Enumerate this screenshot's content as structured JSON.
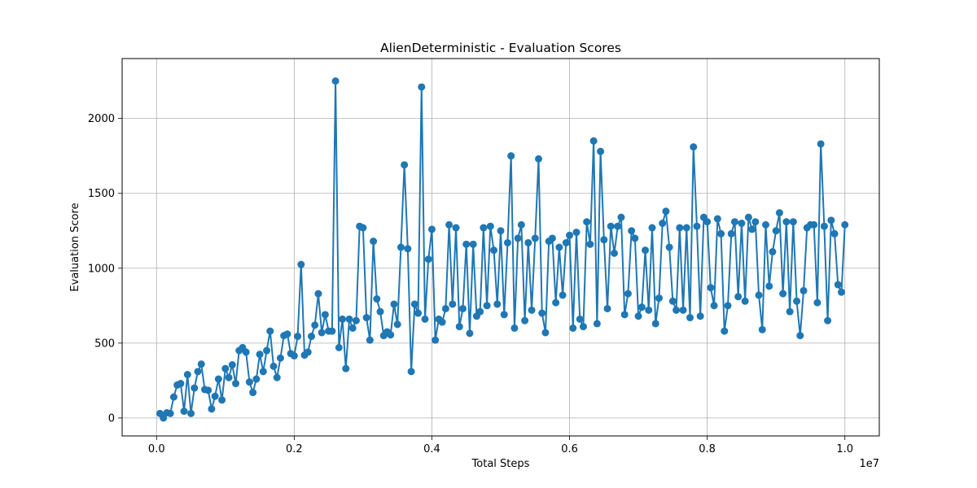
{
  "chart_data": {
    "type": "line",
    "title": "AlienDeterministic - Evaluation Scores",
    "xlabel": "Total Steps",
    "ylabel": "Evaluation Score",
    "x_scale_label": "1e7",
    "x_unit_factor": 10000000,
    "xlim": [
      -0.05,
      1.05
    ],
    "ylim": [
      -120,
      2400
    ],
    "xticks": [
      0.0,
      0.2,
      0.4,
      0.6,
      0.8,
      1.0
    ],
    "xtick_labels": [
      "0.0",
      "0.2",
      "0.4",
      "0.6",
      "0.8",
      "1.0"
    ],
    "yticks": [
      0,
      500,
      1000,
      1500,
      2000
    ],
    "ytick_labels": [
      "0",
      "500",
      "1000",
      "1500",
      "2000"
    ],
    "grid": true,
    "line_color": "#1f77b4",
    "marker": "circle",
    "series": [
      {
        "x": [
          0.005,
          0.01,
          0.015,
          0.02,
          0.025,
          0.03,
          0.035,
          0.04,
          0.045,
          0.05,
          0.055,
          0.06,
          0.065,
          0.07,
          0.075,
          0.08,
          0.085,
          0.09,
          0.095,
          0.1,
          0.105,
          0.11,
          0.115,
          0.12,
          0.125,
          0.13,
          0.135,
          0.14,
          0.145,
          0.15,
          0.155,
          0.16,
          0.165,
          0.17,
          0.175,
          0.18,
          0.185,
          0.19,
          0.195,
          0.2,
          0.205,
          0.21,
          0.215,
          0.22,
          0.225,
          0.23,
          0.235,
          0.24,
          0.245,
          0.25,
          0.255,
          0.26,
          0.265,
          0.27,
          0.275,
          0.28,
          0.285,
          0.29,
          0.295,
          0.3,
          0.305,
          0.31,
          0.315,
          0.32,
          0.325,
          0.33,
          0.335,
          0.34,
          0.345,
          0.35,
          0.355,
          0.36,
          0.365,
          0.37,
          0.375,
          0.38,
          0.385,
          0.39,
          0.395,
          0.4,
          0.405,
          0.41,
          0.415,
          0.42,
          0.425,
          0.43,
          0.435,
          0.44,
          0.445,
          0.45,
          0.455,
          0.46,
          0.465,
          0.47,
          0.475,
          0.48,
          0.485,
          0.49,
          0.495,
          0.5,
          0.505,
          0.51,
          0.515,
          0.52,
          0.525,
          0.53,
          0.535,
          0.54,
          0.545,
          0.55,
          0.555,
          0.56,
          0.565,
          0.57,
          0.575,
          0.58,
          0.585,
          0.59,
          0.595,
          0.6,
          0.605,
          0.61,
          0.615,
          0.62,
          0.625,
          0.63,
          0.635,
          0.64,
          0.645,
          0.65,
          0.655,
          0.66,
          0.665,
          0.67,
          0.675,
          0.68,
          0.685,
          0.69,
          0.695,
          0.7,
          0.705,
          0.71,
          0.715,
          0.72,
          0.725,
          0.73,
          0.735,
          0.74,
          0.745,
          0.75,
          0.755,
          0.76,
          0.765,
          0.77,
          0.775,
          0.78,
          0.785,
          0.79,
          0.795,
          0.8,
          0.805,
          0.81,
          0.815,
          0.82,
          0.825,
          0.83,
          0.835,
          0.84,
          0.845,
          0.85,
          0.855,
          0.86,
          0.865,
          0.87,
          0.875,
          0.88,
          0.885,
          0.89,
          0.895,
          0.9,
          0.905,
          0.91,
          0.915,
          0.92,
          0.925,
          0.93,
          0.935,
          0.94,
          0.945,
          0.95,
          0.955,
          0.96,
          0.965,
          0.97,
          0.975,
          0.98,
          0.985,
          0.99,
          0.995,
          1.0
        ],
        "values": [
          30,
          0,
          35,
          30,
          140,
          220,
          230,
          45,
          290,
          30,
          200,
          310,
          360,
          190,
          185,
          60,
          145,
          260,
          120,
          330,
          270,
          355,
          230,
          450,
          470,
          440,
          240,
          170,
          260,
          425,
          310,
          450,
          580,
          345,
          270,
          400,
          550,
          560,
          430,
          415,
          545,
          1025,
          420,
          440,
          545,
          620,
          830,
          570,
          690,
          580,
          580,
          2250,
          470,
          660,
          330,
          660,
          600,
          650,
          1280,
          1270,
          670,
          520,
          1180,
          795,
          710,
          550,
          575,
          555,
          760,
          625,
          1140,
          1690,
          1130,
          310,
          760,
          700,
          2210,
          660,
          1060,
          1260,
          520,
          660,
          640,
          730,
          1290,
          760,
          1270,
          610,
          730,
          1160,
          565,
          1160,
          680,
          710,
          1270,
          750,
          1280,
          1120,
          760,
          1250,
          690,
          1170,
          1750,
          600,
          1200,
          1290,
          650,
          1170,
          720,
          1200,
          1730,
          700,
          570,
          1180,
          1200,
          770,
          1140,
          820,
          1170,
          1220,
          600,
          1240,
          660,
          610,
          1310,
          1160,
          1850,
          630,
          1780,
          1190,
          730,
          1280,
          1100,
          1280,
          1340,
          690,
          830,
          1250,
          1200,
          680,
          740,
          1120,
          720,
          1270,
          630,
          800,
          1300,
          1380,
          1140,
          780,
          720,
          1270,
          720,
          1270,
          670,
          1810,
          1280,
          680,
          1340,
          1310,
          870,
          750,
          1330,
          1230,
          580,
          750,
          1230,
          1310,
          810,
          1300,
          780,
          1340,
          1260,
          1310,
          820,
          590,
          1290,
          880,
          1110,
          1250,
          1370,
          830,
          1310,
          710,
          1310,
          780,
          550,
          850,
          1270,
          1290,
          1290,
          770,
          1830,
          1280,
          650,
          1320,
          1230,
          890,
          840,
          1290
        ]
      }
    ]
  }
}
